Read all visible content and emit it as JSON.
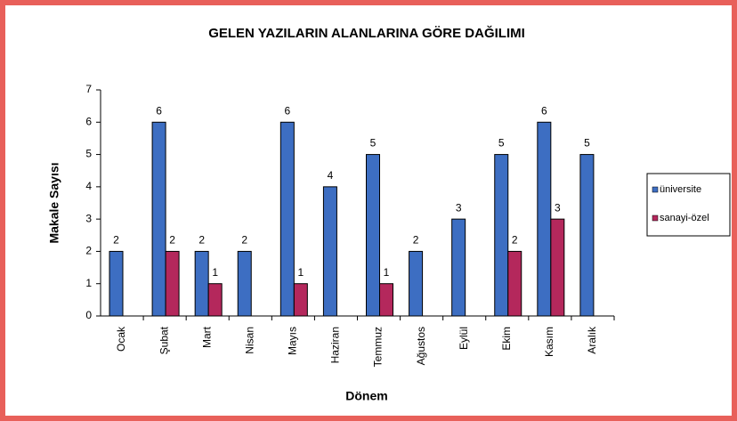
{
  "chart_data": {
    "type": "bar",
    "title": "GELEN YAZILARIN ALANLARINA GÖRE DAĞILIMI",
    "x_label": "Dönem",
    "y_label": "Makale Sayısı",
    "categories": [
      "Ocak",
      "Şubat",
      "Mart",
      "Nisan",
      "Mayıs",
      "Haziran",
      "Temmuz",
      "Ağustos",
      "Eylül",
      "Ekim",
      "Kasım",
      "Aralık"
    ],
    "series": [
      {
        "name": "üniversite",
        "color": "#3d6ec2",
        "values": [
          2,
          6,
          2,
          2,
          6,
          4,
          5,
          2,
          3,
          5,
          6,
          5
        ]
      },
      {
        "name": "sanayi-özel",
        "color": "#b4285c",
        "values": [
          null,
          2,
          1,
          null,
          1,
          null,
          1,
          null,
          null,
          2,
          3,
          null
        ]
      }
    ],
    "ylim": [
      0,
      7
    ],
    "yticks": [
      0,
      1,
      2,
      3,
      4,
      5,
      6,
      7
    ],
    "legend": "right"
  }
}
